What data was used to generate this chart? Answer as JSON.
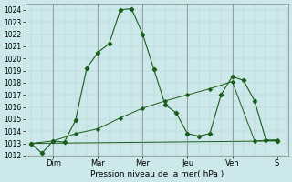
{
  "xlabel": "Pression niveau de la mer( hPa )",
  "background_color": "#cce8ea",
  "plot_bg_color": "#cce8ea",
  "grid_color": "#b0cccc",
  "line_color": "#1a5c1a",
  "ylim": [
    1012,
    1024.5
  ],
  "yticks": [
    1012,
    1013,
    1014,
    1015,
    1016,
    1017,
    1018,
    1019,
    1020,
    1021,
    1022,
    1023,
    1024
  ],
  "ytick_fontsize": 5.5,
  "xtick_fontsize": 6.0,
  "xlabel_fontsize": 6.5,
  "day_labels": [
    "Dim",
    "Mar",
    "Mer",
    "Jeu",
    "Ven",
    "S"
  ],
  "day_positions": [
    8,
    24,
    40,
    56,
    72,
    88
  ],
  "xlim": [
    -2,
    92
  ],
  "series1_x": [
    0,
    4,
    8,
    12,
    16,
    20,
    24,
    28,
    32,
    36,
    40,
    44,
    48,
    52,
    56,
    60,
    64,
    68,
    72,
    76,
    80,
    84,
    88
  ],
  "series1_y": [
    1013.0,
    1012.2,
    1013.2,
    1013.1,
    1014.9,
    1019.2,
    1020.5,
    1021.2,
    1024.0,
    1024.1,
    1022.0,
    1019.1,
    1016.2,
    1015.5,
    1013.8,
    1013.6,
    1013.8,
    1017.0,
    1018.5,
    1018.2,
    1016.5,
    1013.3,
    1013.2
  ],
  "series2_x": [
    0,
    8,
    16,
    24,
    32,
    40,
    48,
    56,
    64,
    72,
    80,
    88
  ],
  "series2_y": [
    1013.0,
    1013.2,
    1013.8,
    1014.2,
    1015.1,
    1015.9,
    1016.5,
    1017.0,
    1017.5,
    1018.1,
    1013.2,
    1013.3
  ],
  "series3_x": [
    0,
    88
  ],
  "series3_y": [
    1013.0,
    1013.2
  ]
}
